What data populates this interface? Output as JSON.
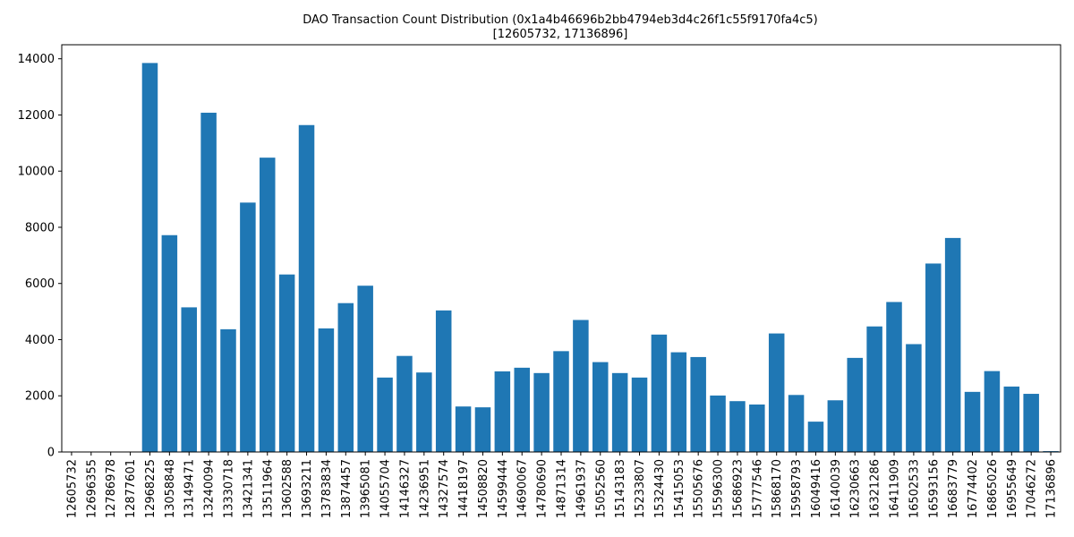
{
  "chart_data": {
    "type": "bar",
    "title": "DAO Transaction Count Distribution (0x1a4b46696b2bb4794eb3d4c26f1c55f9170fa4c5)",
    "subtitle": "[12605732, 17136896]",
    "xlabel": "",
    "ylabel": "",
    "ylim": [
      0,
      14500
    ],
    "yticks": [
      0,
      2000,
      4000,
      6000,
      8000,
      10000,
      12000,
      14000
    ],
    "grid": false,
    "bar_color": "#1f77b4",
    "categories": [
      "12605732",
      "12696355",
      "12786978",
      "12877601",
      "12968225",
      "13058848",
      "13149471",
      "13240094",
      "13330718",
      "13421341",
      "13511964",
      "13602588",
      "13693211",
      "13783834",
      "13874457",
      "13965081",
      "14055704",
      "14146327",
      "14236951",
      "14327574",
      "14418197",
      "14508820",
      "14599444",
      "14690067",
      "14780690",
      "14871314",
      "14961937",
      "15052560",
      "15143183",
      "15233807",
      "15324430",
      "15415053",
      "15505676",
      "15596300",
      "15686923",
      "15777546",
      "15868170",
      "15958793",
      "16049416",
      "16140039",
      "16230663",
      "16321286",
      "16411909",
      "16502533",
      "16593156",
      "16683779",
      "16774402",
      "16865026",
      "16955649",
      "17046272",
      "17136896"
    ],
    "values": [
      10,
      5,
      0,
      5,
      13850,
      7720,
      5150,
      12080,
      4370,
      8880,
      10480,
      6320,
      11640,
      4400,
      5300,
      5920,
      2650,
      3420,
      2830,
      5040,
      1620,
      1590,
      2870,
      3000,
      2810,
      3590,
      4700,
      3200,
      2810,
      2650,
      4180,
      3550,
      3380,
      2010,
      1810,
      1690,
      4220,
      2030,
      1080,
      1840,
      3350,
      4470,
      5340,
      3840,
      6710,
      7620,
      2140,
      2880,
      2330,
      2070,
      30
    ]
  }
}
